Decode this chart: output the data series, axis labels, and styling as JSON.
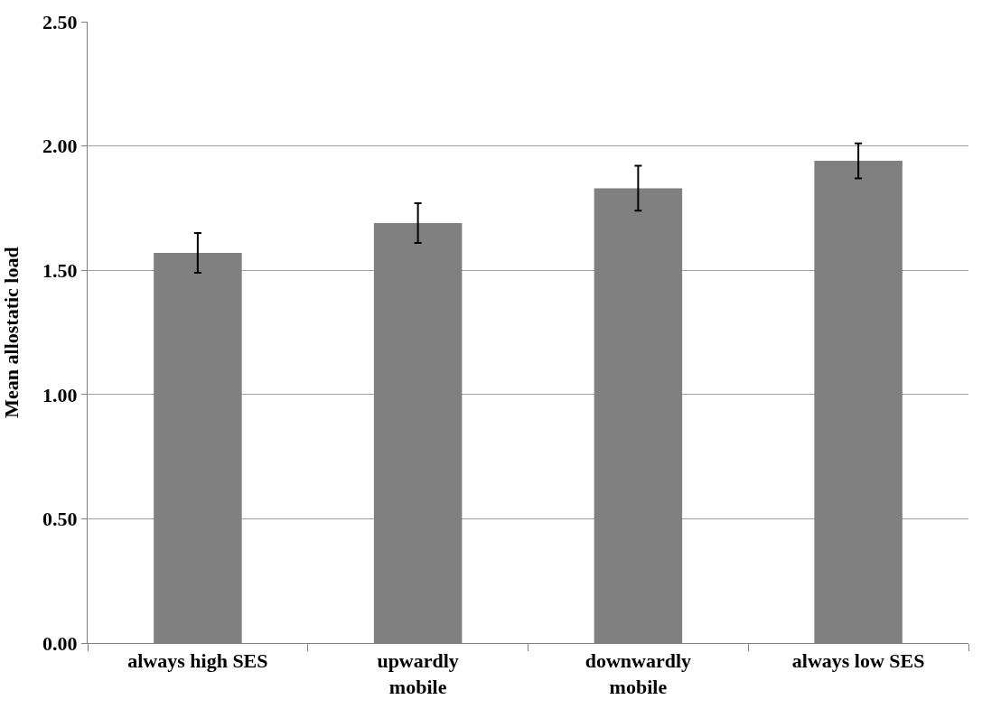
{
  "chart_data": {
    "type": "bar",
    "ylabel": "Mean allostatic load",
    "categories": [
      "always high SES",
      "upwardly\nmobile",
      "downwardly\nmobile",
      "always low SES"
    ],
    "values": [
      1.57,
      1.69,
      1.83,
      1.94
    ],
    "errors": [
      0.08,
      0.08,
      0.09,
      0.07
    ],
    "color": "#808080",
    "ylim": [
      0,
      2.5
    ],
    "yticks": [
      {
        "value": 0,
        "label": "0.00"
      },
      {
        "value": 0.5,
        "label": "0.50"
      },
      {
        "value": 1,
        "label": "1.00"
      },
      {
        "value": 1.5,
        "label": "1.50"
      },
      {
        "value": 2,
        "label": "2.00"
      },
      {
        "value": 2.5,
        "label": "2.50"
      }
    ],
    "grid": "y"
  }
}
